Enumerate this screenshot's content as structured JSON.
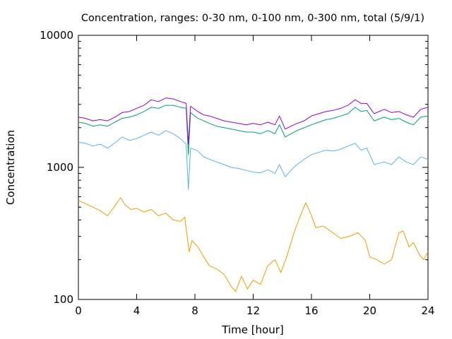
{
  "chart_data": {
    "type": "line",
    "title": "Concentration, ranges: 0-30 nm, 0-100 nm, 0-300 nm, total (5/9/1)",
    "xlabel": "Time [hour]",
    "ylabel": "Concentration",
    "xlim": [
      0,
      24
    ],
    "ylim": [
      100,
      10000
    ],
    "yscale": "log",
    "grid": false,
    "legend": "none",
    "x_ticks": [
      0,
      4,
      8,
      12,
      16,
      20,
      24
    ],
    "x_tick_labels": [
      "0",
      "4",
      "8",
      "12",
      "16",
      "20",
      "24"
    ],
    "y_ticks": [
      100,
      1000,
      10000
    ],
    "y_tick_labels": [
      "100",
      "1000",
      "10000"
    ],
    "series": [
      {
        "color": "#e69f00",
        "x": [
          0,
          0.5,
          1,
          1.5,
          2,
          2.5,
          2.9,
          3.2,
          3.6,
          4,
          4.5,
          5,
          5.5,
          6,
          6.5,
          7,
          7.3,
          7.6,
          7.8,
          8.2,
          8.6,
          9,
          9.5,
          10,
          10.5,
          10.8,
          11.2,
          11.6,
          12,
          12.5,
          13,
          13.5,
          13.9,
          14.3,
          14.8,
          15.2,
          15.6,
          15.9,
          16.3,
          16.8,
          17.3,
          18,
          18.6,
          19.2,
          19.7,
          20,
          20.5,
          21,
          21.5,
          22,
          22.3,
          22.7,
          23,
          23.4,
          23.7,
          24
        ],
        "y": [
          560,
          530,
          500,
          470,
          430,
          510,
          590,
          520,
          480,
          490,
          460,
          480,
          430,
          450,
          400,
          390,
          420,
          230,
          280,
          250,
          210,
          180,
          170,
          155,
          125,
          115,
          150,
          120,
          140,
          130,
          180,
          200,
          160,
          210,
          320,
          420,
          540,
          460,
          350,
          360,
          330,
          290,
          300,
          320,
          280,
          210,
          200,
          185,
          200,
          320,
          330,
          250,
          270,
          220,
          200,
          230
        ]
      },
      {
        "color": "#56b4e9",
        "x": [
          0,
          0.5,
          1,
          1.5,
          2,
          2.5,
          3,
          3.5,
          4,
          4.5,
          5,
          5.5,
          6,
          6.5,
          7,
          7.4,
          7.55,
          7.7,
          8.2,
          8.6,
          9,
          9.5,
          10,
          10.5,
          11,
          11.5,
          12,
          12.5,
          13,
          13.5,
          13.8,
          14.2,
          14.6,
          15,
          15.5,
          16,
          16.5,
          17,
          17.5,
          18,
          18.5,
          19,
          19.4,
          19.8,
          20.3,
          21,
          21.5,
          22,
          22.5,
          23,
          23.5,
          24
        ],
        "y": [
          1550,
          1520,
          1450,
          1500,
          1400,
          1530,
          1700,
          1600,
          1650,
          1750,
          1850,
          1750,
          1900,
          1800,
          1650,
          1500,
          680,
          1400,
          1330,
          1200,
          1150,
          1100,
          1050,
          1000,
          980,
          950,
          920,
          910,
          960,
          900,
          1050,
          850,
          950,
          1050,
          1150,
          1250,
          1300,
          1350,
          1330,
          1370,
          1450,
          1520,
          1350,
          1400,
          1050,
          1100,
          1050,
          1200,
          1100,
          1050,
          1200,
          1150
        ]
      },
      {
        "color": "#009e73",
        "x": [
          0,
          0.5,
          1,
          1.5,
          2,
          2.5,
          3,
          3.5,
          4,
          4.5,
          5,
          5.5,
          6,
          6.5,
          7,
          7.4,
          7.55,
          7.7,
          8.2,
          8.6,
          9,
          9.5,
          10,
          10.5,
          11,
          11.5,
          12,
          12.5,
          13,
          13.5,
          13.8,
          14.2,
          14.6,
          15,
          15.5,
          16,
          16.5,
          17,
          17.5,
          18,
          18.5,
          19,
          19.4,
          19.8,
          20.3,
          21,
          21.5,
          22,
          22.5,
          23,
          23.5,
          24
        ],
        "y": [
          2200,
          2150,
          2050,
          2100,
          2050,
          2200,
          2350,
          2400,
          2500,
          2650,
          2850,
          2800,
          2950,
          2950,
          2850,
          2800,
          1250,
          2600,
          2350,
          2250,
          2150,
          2050,
          2000,
          1950,
          1900,
          1850,
          1850,
          1800,
          1900,
          1800,
          2100,
          1700,
          1800,
          1900,
          2000,
          2100,
          2200,
          2300,
          2350,
          2450,
          2550,
          2850,
          2650,
          2700,
          2250,
          2400,
          2300,
          2350,
          2200,
          2100,
          2400,
          2450
        ]
      },
      {
        "color": "#9400d3",
        "x": [
          0,
          0.5,
          1,
          1.5,
          2,
          2.5,
          3,
          3.5,
          4,
          4.5,
          5,
          5.5,
          6,
          6.5,
          7,
          7.4,
          7.55,
          7.7,
          8.2,
          8.6,
          9,
          9.5,
          10,
          10.5,
          11,
          11.5,
          12,
          12.5,
          13,
          13.5,
          13.8,
          14.2,
          14.6,
          15,
          15.5,
          16,
          16.5,
          17,
          17.5,
          18,
          18.5,
          19,
          19.4,
          19.8,
          20.3,
          21,
          21.5,
          22,
          22.5,
          23,
          23.5,
          24
        ],
        "y": [
          2400,
          2350,
          2250,
          2300,
          2250,
          2400,
          2600,
          2650,
          2800,
          2950,
          3250,
          3150,
          3350,
          3300,
          3150,
          3050,
          1500,
          2900,
          2650,
          2500,
          2450,
          2350,
          2250,
          2200,
          2150,
          2100,
          2150,
          2100,
          2200,
          2100,
          2450,
          1950,
          2050,
          2150,
          2250,
          2450,
          2550,
          2650,
          2700,
          2800,
          2950,
          3250,
          3050,
          3050,
          2550,
          2750,
          2600,
          2650,
          2500,
          2400,
          2750,
          2850
        ]
      }
    ]
  }
}
